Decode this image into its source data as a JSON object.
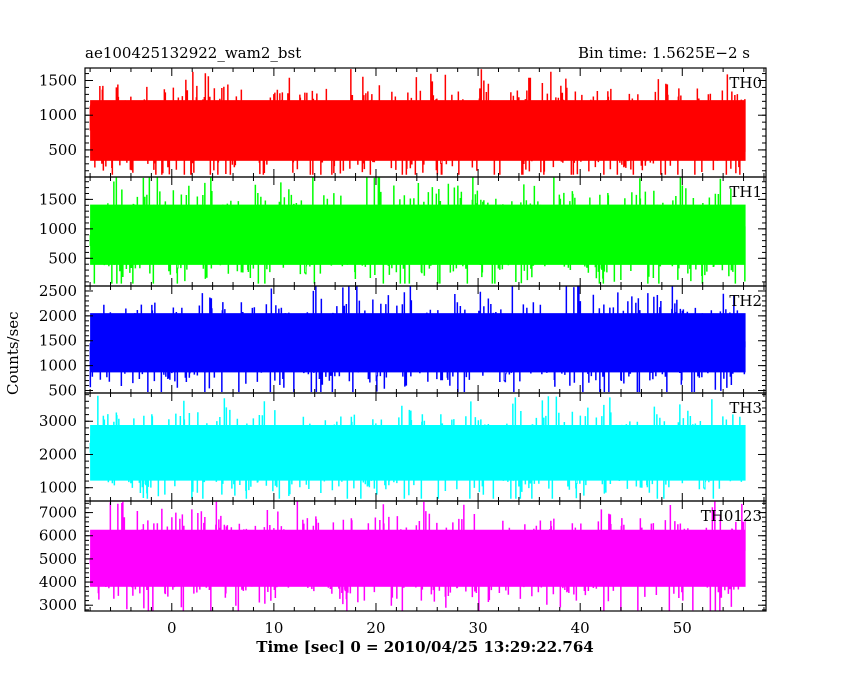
{
  "header": {
    "title": "ae100425132922_wam2_bst",
    "bin_time": "Bin time: 1.5625E−2 s"
  },
  "chart_data": [
    {
      "type": "line",
      "series_label": "TH0",
      "color": "#ff0000",
      "ylim": [
        110,
        1680
      ],
      "yticks": [
        500,
        1000,
        1500
      ],
      "xlim": [
        -8.5,
        58.2
      ],
      "data_range": [
        -8.0,
        56.2
      ],
      "band": {
        "mean": 780,
        "low_p": 310,
        "high_p": 1250,
        "min": 150,
        "max": 1680
      }
    },
    {
      "type": "line",
      "series_label": "TH1",
      "color": "#00ff00",
      "ylim": [
        30,
        1880
      ],
      "yticks": [
        500,
        1000,
        1500
      ],
      "xlim": [
        -8.5,
        58.2
      ],
      "data_range": [
        -8.0,
        56.2
      ],
      "band": {
        "mean": 900,
        "low_p": 350,
        "high_p": 1450,
        "min": 80,
        "max": 1880
      }
    },
    {
      "type": "line",
      "series_label": "TH2",
      "color": "#0000ff",
      "ylim": [
        450,
        2600
      ],
      "yticks": [
        500,
        1000,
        1500,
        2000,
        2500
      ],
      "xlim": [
        -8.5,
        58.2
      ],
      "data_range": [
        -8.0,
        56.2
      ],
      "band": {
        "mean": 1450,
        "low_p": 820,
        "high_p": 2100,
        "min": 480,
        "max": 2600
      }
    },
    {
      "type": "line",
      "series_label": "TH3",
      "color": "#00ffff",
      "ylim": [
        600,
        3850
      ],
      "yticks": [
        1000,
        2000,
        3000
      ],
      "xlim": [
        -8.5,
        58.2
      ],
      "data_range": [
        -8.0,
        56.2
      ],
      "band": {
        "mean": 2050,
        "low_p": 1150,
        "high_p": 2950,
        "min": 680,
        "max": 3850
      }
    },
    {
      "type": "line",
      "series_label": "TH0123",
      "color": "#ff00ff",
      "ylim": [
        2750,
        7500
      ],
      "yticks": [
        3000,
        4000,
        5000,
        6000,
        7000
      ],
      "xlim": [
        -8.5,
        58.2
      ],
      "data_range": [
        -8.0,
        56.2
      ],
      "band": {
        "mean": 5050,
        "low_p": 3700,
        "high_p": 6350,
        "min": 2750,
        "max": 7500
      }
    }
  ],
  "axes": {
    "xticks": [
      0,
      10,
      20,
      30,
      40,
      50
    ],
    "xlabel": "Time [sec] 0 = 2010/04/25 13:29:22.764",
    "ylabel": "Counts/sec"
  }
}
